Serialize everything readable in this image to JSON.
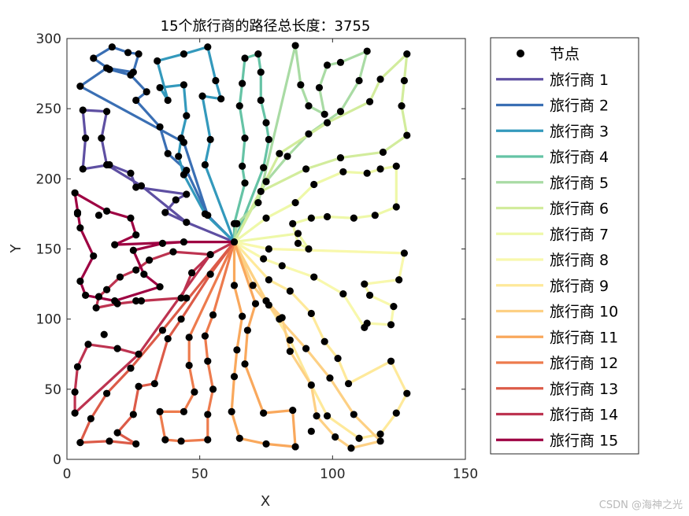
{
  "watermark": "CSDN @海神之光",
  "chart_data": {
    "type": "line",
    "title": "15个旅行商的路径总长度：3755",
    "xlabel": "X",
    "ylabel": "Y",
    "xlim": [
      0,
      150
    ],
    "ylim": [
      0,
      300
    ],
    "xticks": [
      0,
      50,
      100,
      150
    ],
    "yticks": [
      0,
      50,
      100,
      150,
      200,
      250,
      300
    ],
    "grid": false,
    "legend_position": "right",
    "depot": [
      63,
      155
    ],
    "node_legend": "节点",
    "series": [
      {
        "name": "旅行商 1",
        "color": "#5e4fa2",
        "points": [
          [
            63,
            155
          ],
          [
            45,
            169
          ],
          [
            37,
            176
          ],
          [
            41,
            185
          ],
          [
            45,
            189
          ],
          [
            26,
            194
          ],
          [
            24,
            204
          ],
          [
            16,
            210
          ],
          [
            6,
            207
          ],
          [
            7,
            229
          ],
          [
            6,
            249
          ],
          [
            15,
            248
          ],
          [
            13,
            229
          ],
          [
            15,
            210
          ],
          [
            28,
            195
          ],
          [
            45,
            169
          ],
          [
            63,
            155
          ]
        ]
      },
      {
        "name": "旅行商 2",
        "color": "#3a6fb4",
        "points": [
          [
            63,
            155
          ],
          [
            53,
            174
          ],
          [
            45,
            206
          ],
          [
            38,
            218
          ],
          [
            35,
            237
          ],
          [
            26,
            256
          ],
          [
            30,
            262
          ],
          [
            24,
            274
          ],
          [
            16,
            278
          ],
          [
            10,
            286
          ],
          [
            17,
            294
          ],
          [
            23,
            290
          ],
          [
            27,
            289
          ],
          [
            25,
            276
          ],
          [
            15,
            279
          ],
          [
            5,
            266
          ],
          [
            44,
            226
          ],
          [
            53,
            174
          ],
          [
            63,
            155
          ]
        ]
      },
      {
        "name": "旅行商 3",
        "color": "#3399bc",
        "points": [
          [
            63,
            155
          ],
          [
            52,
            175
          ],
          [
            44,
            203
          ],
          [
            42,
            216
          ],
          [
            43,
            229
          ],
          [
            45,
            245
          ],
          [
            44,
            267
          ],
          [
            35,
            265
          ],
          [
            38,
            256
          ],
          [
            34,
            284
          ],
          [
            44,
            289
          ],
          [
            53,
            294
          ],
          [
            56,
            270
          ],
          [
            58,
            257
          ],
          [
            51,
            259
          ],
          [
            54,
            228
          ],
          [
            52,
            210
          ],
          [
            63,
            155
          ]
        ]
      },
      {
        "name": "旅行商 4",
        "color": "#65c3a5",
        "points": [
          [
            63,
            155
          ],
          [
            63,
            168
          ],
          [
            67,
            197
          ],
          [
            66,
            209
          ],
          [
            67,
            229
          ],
          [
            65,
            252
          ],
          [
            66,
            268
          ],
          [
            67,
            286
          ],
          [
            72,
            289
          ],
          [
            73,
            276
          ],
          [
            73,
            256
          ],
          [
            75,
            240
          ],
          [
            76,
            228
          ],
          [
            74,
            208
          ],
          [
            63,
            155
          ]
        ]
      },
      {
        "name": "旅行商 5",
        "color": "#a9dba4",
        "points": [
          [
            63,
            155
          ],
          [
            64,
            168
          ],
          [
            72,
            183
          ],
          [
            86,
            295
          ],
          [
            88,
            267
          ],
          [
            91,
            252
          ],
          [
            97,
            246
          ],
          [
            95,
            265
          ],
          [
            98,
            281
          ],
          [
            103,
            283
          ],
          [
            113,
            291
          ],
          [
            110,
            270
          ],
          [
            103,
            248
          ],
          [
            91,
            232
          ],
          [
            83,
            216
          ],
          [
            75,
            198
          ],
          [
            63,
            155
          ]
        ]
      },
      {
        "name": "旅行商 6",
        "color": "#d2ec9c",
        "points": [
          [
            63,
            155
          ],
          [
            73,
            191
          ],
          [
            90,
            207
          ],
          [
            103,
            215
          ],
          [
            119,
            219
          ],
          [
            128,
            231
          ],
          [
            126,
            252
          ],
          [
            127,
            270
          ],
          [
            128,
            289
          ],
          [
            118,
            271
          ],
          [
            114,
            255
          ],
          [
            98,
            240
          ],
          [
            80,
            218
          ],
          [
            63,
            155
          ]
        ]
      },
      {
        "name": "旅行商 7",
        "color": "#eef8a8",
        "points": [
          [
            63,
            155
          ],
          [
            75,
            172
          ],
          [
            86,
            183
          ],
          [
            93,
            196
          ],
          [
            104,
            205
          ],
          [
            113,
            204
          ],
          [
            118,
            207
          ],
          [
            124,
            209
          ],
          [
            124,
            180
          ],
          [
            116,
            174
          ],
          [
            108,
            172
          ],
          [
            98,
            173
          ],
          [
            92,
            172
          ],
          [
            85,
            168
          ],
          [
            87,
            154
          ],
          [
            91,
            150
          ],
          [
            87,
            161
          ],
          [
            63,
            155
          ]
        ]
      },
      {
        "name": "旅行商 8",
        "color": "#f8f8ac",
        "points": [
          [
            63,
            155
          ],
          [
            76,
            150
          ],
          [
            127,
            147
          ],
          [
            125,
            128
          ],
          [
            112,
            125
          ],
          [
            114,
            117
          ],
          [
            123,
            109
          ],
          [
            122,
            96
          ],
          [
            113,
            97
          ],
          [
            112,
            94
          ],
          [
            104,
            118
          ],
          [
            93,
            130
          ],
          [
            81,
            138
          ],
          [
            74,
            143
          ],
          [
            63,
            155
          ]
        ]
      },
      {
        "name": "旅行商 9",
        "color": "#fee99a",
        "points": [
          [
            63,
            155
          ],
          [
            76,
            128
          ],
          [
            84,
            120
          ],
          [
            92,
            104
          ],
          [
            97,
            84
          ],
          [
            102,
            72
          ],
          [
            106,
            54
          ],
          [
            122,
            70
          ],
          [
            128,
            47
          ],
          [
            124,
            33
          ],
          [
            118,
            18
          ],
          [
            110,
            15
          ],
          [
            98,
            31
          ],
          [
            92,
            53
          ],
          [
            84,
            85
          ],
          [
            76,
            110
          ],
          [
            63,
            155
          ]
        ]
      },
      {
        "name": "旅行商 10",
        "color": "#fdd084",
        "points": [
          [
            63,
            155
          ],
          [
            75,
            113
          ],
          [
            81,
            101
          ],
          [
            84,
            77
          ],
          [
            92,
            53
          ],
          [
            94,
            31
          ],
          [
            101,
            16
          ],
          [
            107,
            8
          ],
          [
            118,
            13
          ],
          [
            108,
            32
          ],
          [
            99,
            58
          ],
          [
            90,
            79
          ],
          [
            80,
            100
          ],
          [
            70,
            124
          ],
          [
            63,
            155
          ]
        ]
      },
      {
        "name": "旅行商 11",
        "color": "#f9a85c",
        "points": [
          [
            63,
            155
          ],
          [
            63,
            124
          ],
          [
            66,
            102
          ],
          [
            64,
            78
          ],
          [
            63,
            59
          ],
          [
            62,
            34
          ],
          [
            65,
            15
          ],
          [
            75,
            11
          ],
          [
            86,
            9
          ],
          [
            85,
            35
          ],
          [
            74,
            33
          ],
          [
            67,
            68
          ],
          [
            68,
            92
          ],
          [
            71,
            111
          ],
          [
            63,
            155
          ]
        ]
      },
      {
        "name": "旅行商 12",
        "color": "#ed7b4d",
        "points": [
          [
            63,
            155
          ],
          [
            55,
            103
          ],
          [
            52,
            88
          ],
          [
            53,
            70
          ],
          [
            55,
            50
          ],
          [
            53,
            32
          ],
          [
            53,
            14
          ],
          [
            43,
            13
          ],
          [
            37,
            14
          ],
          [
            35,
            34
          ],
          [
            44,
            34
          ],
          [
            48,
            48
          ],
          [
            46,
            67
          ],
          [
            46,
            87
          ],
          [
            63,
            155
          ]
        ]
      },
      {
        "name": "旅行商 13",
        "color": "#dc5b48",
        "points": [
          [
            63,
            155
          ],
          [
            54,
            132
          ],
          [
            43,
            100
          ],
          [
            38,
            86
          ],
          [
            33,
            54
          ],
          [
            27,
            52
          ],
          [
            25,
            32
          ],
          [
            19,
            19
          ],
          [
            26,
            11
          ],
          [
            16,
            13
          ],
          [
            5,
            12
          ],
          [
            9,
            29
          ],
          [
            15,
            47
          ],
          [
            24,
            65
          ],
          [
            36,
            92
          ],
          [
            63,
            155
          ]
        ]
      },
      {
        "name": "旅行商 14",
        "color": "#bd3350",
        "points": [
          [
            63,
            155
          ],
          [
            54,
            146
          ],
          [
            47,
            133
          ],
          [
            43,
            115
          ],
          [
            28,
            113
          ],
          [
            19,
            111
          ],
          [
            11,
            108
          ],
          [
            12,
            116
          ],
          [
            15,
            121
          ],
          [
            20,
            130
          ],
          [
            26,
            135
          ],
          [
            31,
            142
          ],
          [
            40,
            148
          ],
          [
            54,
            146
          ],
          [
            27,
            75
          ],
          [
            19,
            79
          ],
          [
            8,
            82
          ],
          [
            4,
            66
          ],
          [
            3,
            48
          ],
          [
            3,
            33
          ],
          [
            27,
            75
          ],
          [
            54,
            146
          ],
          [
            63,
            155
          ]
        ]
      },
      {
        "name": "旅行商 15",
        "color": "#9e0142",
        "points": [
          [
            63,
            155
          ],
          [
            44,
            155
          ],
          [
            36,
            154
          ],
          [
            25,
            149
          ],
          [
            29,
            132
          ],
          [
            35,
            123
          ],
          [
            18,
            113
          ],
          [
            7,
            117
          ],
          [
            5,
            127
          ],
          [
            10,
            145
          ],
          [
            5,
            165
          ],
          [
            3,
            190
          ],
          [
            15,
            177
          ],
          [
            24,
            172
          ],
          [
            26,
            160
          ],
          [
            18,
            153
          ],
          [
            44,
            155
          ],
          [
            63,
            155
          ]
        ]
      }
    ],
    "extra_nodes": [
      [
        4,
        176
      ],
      [
        4,
        175
      ],
      [
        12,
        174
      ],
      [
        14,
        89
      ],
      [
        45,
        115
      ],
      [
        26,
        113
      ],
      [
        92,
        20
      ]
    ]
  }
}
